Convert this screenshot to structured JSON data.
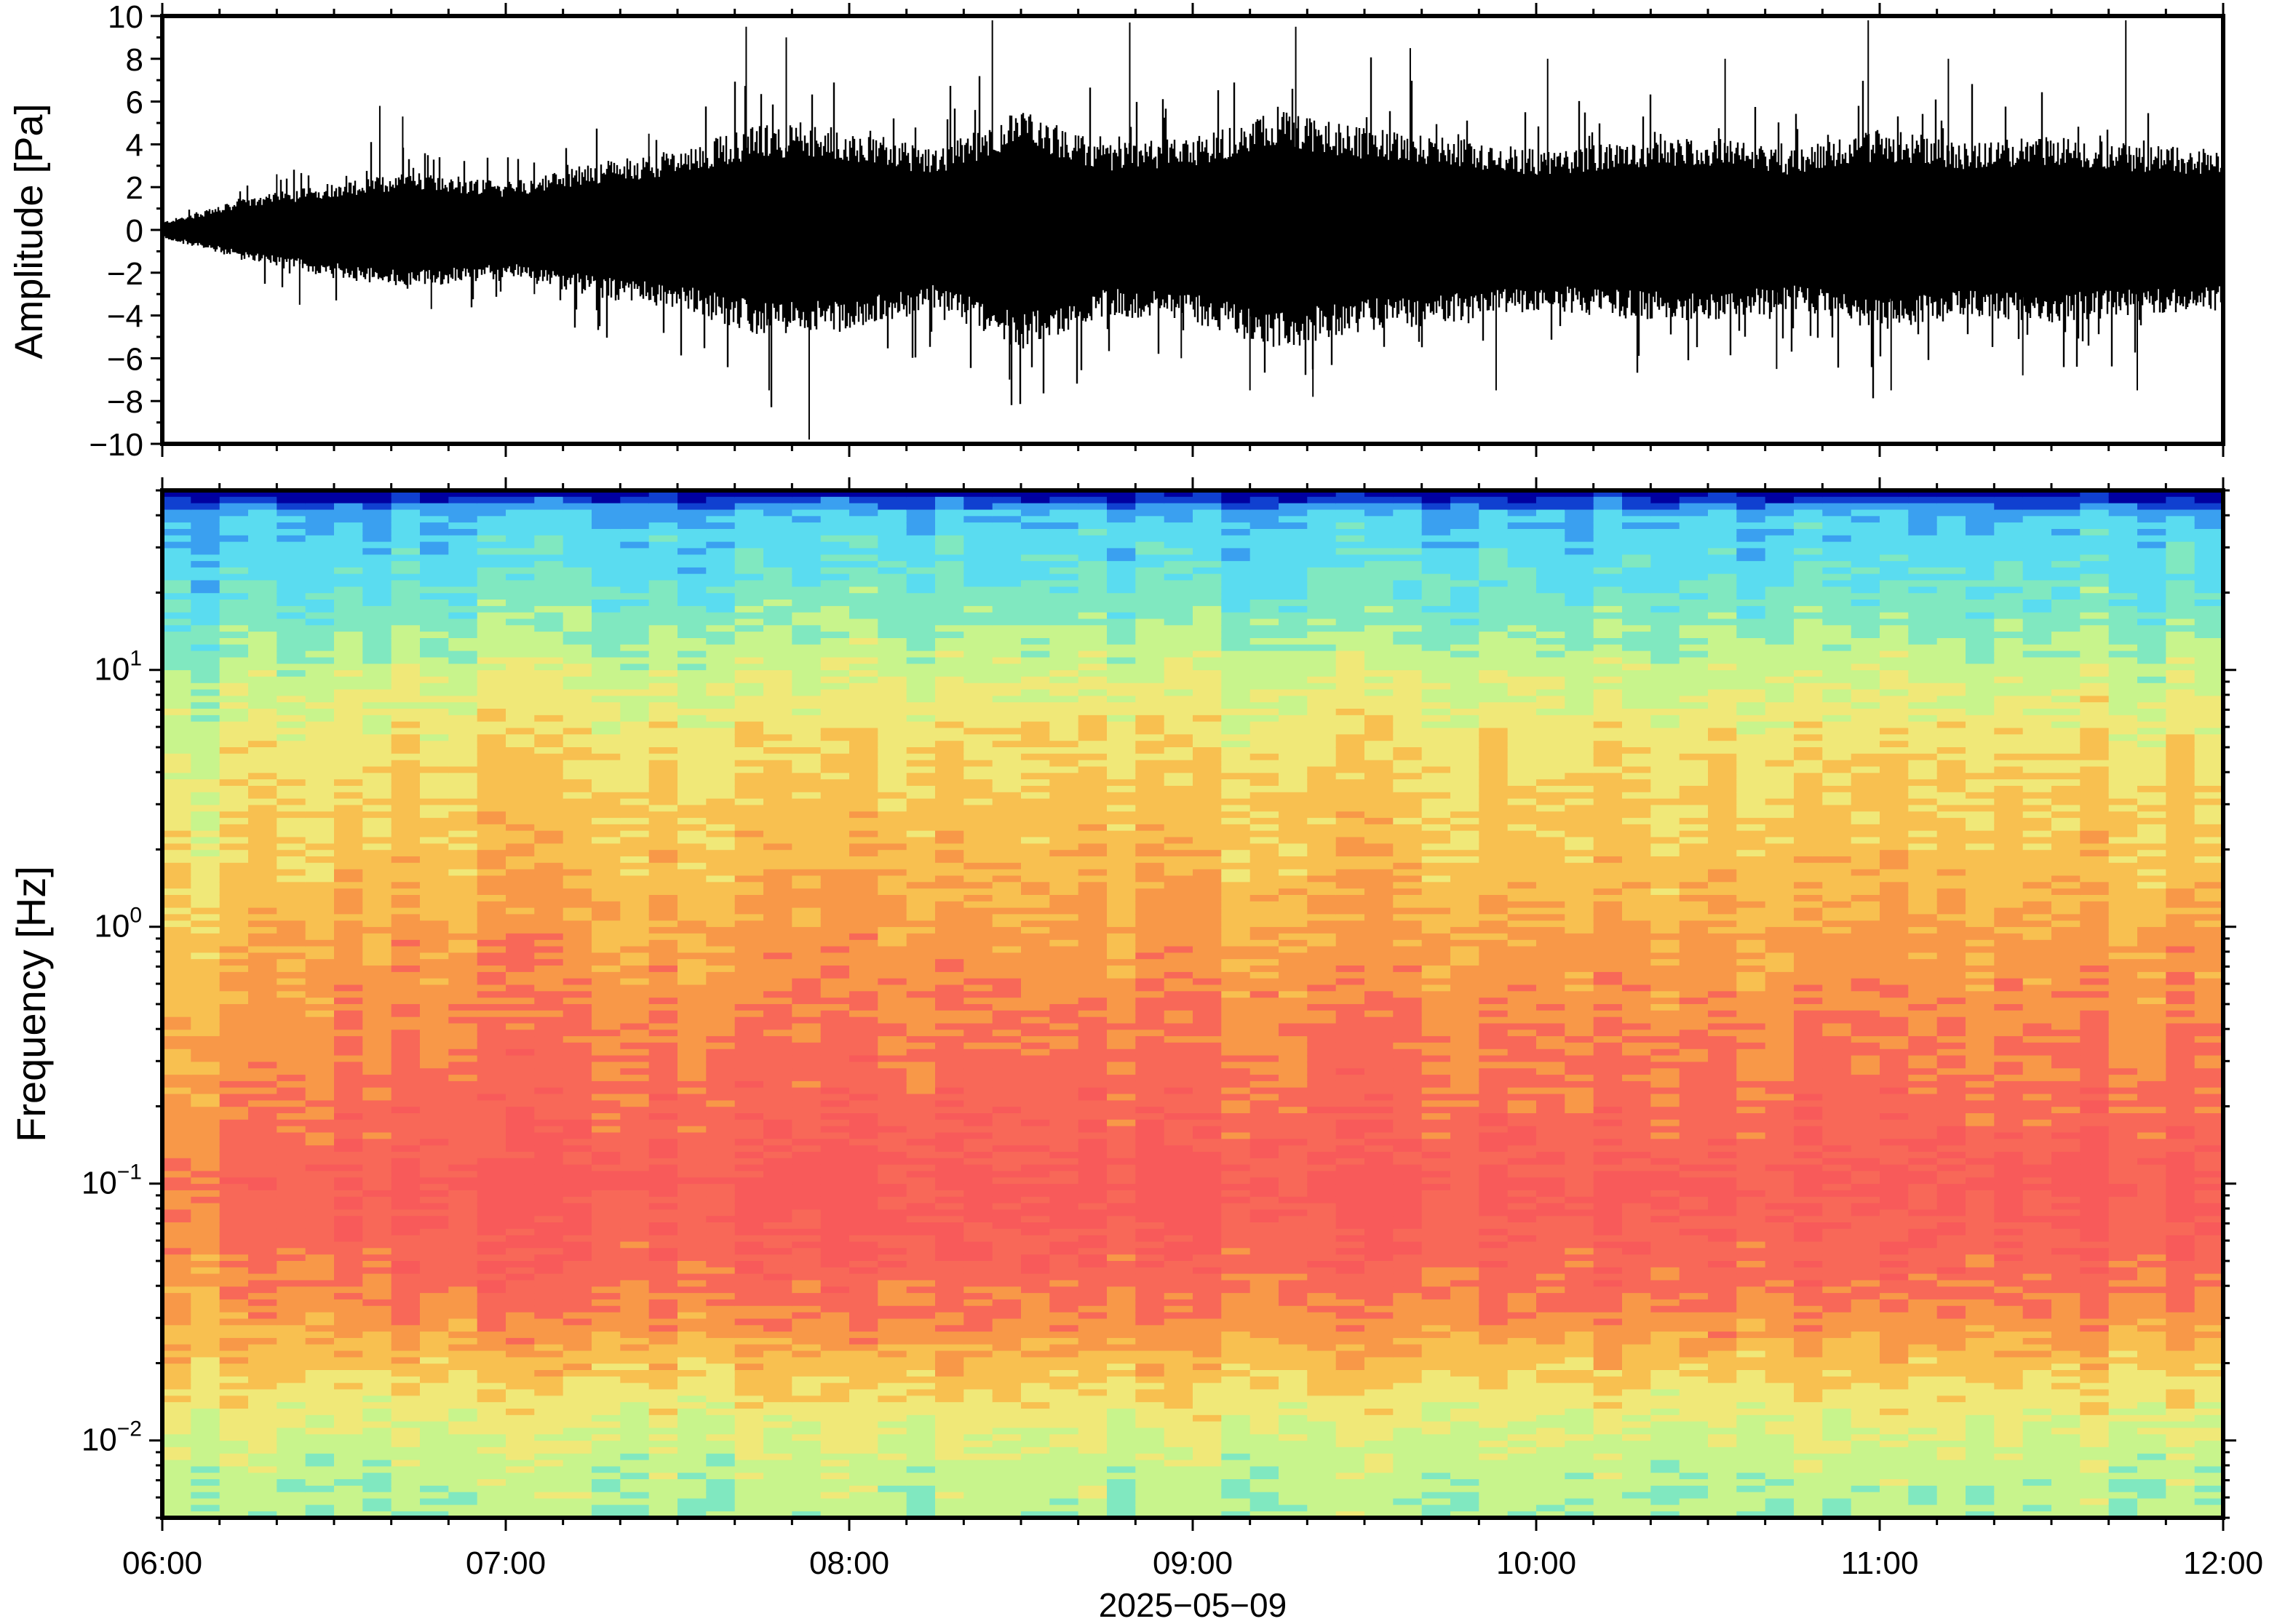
{
  "figure": {
    "date_label": "2025−05−09"
  },
  "chart_data": [
    {
      "type": "line",
      "ylabel": "Amplitude [Pa]",
      "xlabel": "",
      "ylim": [
        -10,
        10
      ],
      "yticks": [
        10,
        8,
        6,
        4,
        2,
        0,
        -2,
        -4,
        -6,
        -8,
        -10
      ],
      "ytick_labels": [
        "10",
        "8",
        "6",
        "4",
        "2",
        "0",
        "−2",
        "−4",
        "−6",
        "−8",
        "−10"
      ],
      "xlim": [
        "06:00",
        "12:00"
      ],
      "grid": false,
      "series": [
        {
          "color": "#000000",
          "envelope": {
            "time_h": [
              6.0,
              6.25,
              6.5,
              6.75,
              7.0,
              7.25,
              7.5,
              7.75,
              8.0,
              8.25,
              8.5,
              8.75,
              9.0,
              9.25,
              9.5,
              9.75,
              10.0,
              10.25,
              10.5,
              10.75,
              11.0,
              11.25,
              11.5,
              11.75,
              12.0
            ],
            "amp_pa": [
              0.3,
              1.2,
              1.8,
              2.2,
              1.8,
              2.5,
              3.0,
              4.0,
              3.8,
              3.0,
              4.5,
              3.2,
              3.5,
              4.5,
              3.8,
              3.5,
              3.0,
              3.3,
              3.5,
              3.0,
              3.8,
              3.3,
              3.5,
              3.2,
              3.0
            ]
          },
          "peaks": [
            {
              "t": "06:20",
              "amp": 2.6
            },
            {
              "t": "06:24",
              "amp": -3.5
            },
            {
              "t": "06:38",
              "amp": 5.8
            },
            {
              "t": "06:42",
              "amp": 5.3
            },
            {
              "t": "06:47",
              "amp": -3.7
            },
            {
              "t": "07:05",
              "amp": -3.0
            },
            {
              "t": "07:25",
              "amp": 4.5
            },
            {
              "t": "07:42",
              "amp": 9.5
            },
            {
              "t": "07:46",
              "amp": -7.5
            },
            {
              "t": "07:49",
              "amp": 9.0
            },
            {
              "t": "07:53",
              "amp": -9.8
            },
            {
              "t": "08:25",
              "amp": 9.8
            },
            {
              "t": "08:28",
              "amp": -7.0
            },
            {
              "t": "08:49",
              "amp": 9.7
            },
            {
              "t": "08:58",
              "amp": -6.0
            },
            {
              "t": "09:10",
              "amp": -7.5
            },
            {
              "t": "09:18",
              "amp": 9.5
            },
            {
              "t": "09:21",
              "amp": -7.8
            },
            {
              "t": "09:38",
              "amp": 8.5
            },
            {
              "t": "09:53",
              "amp": -7.5
            },
            {
              "t": "10:02",
              "amp": 8.0
            },
            {
              "t": "10:33",
              "amp": 8.0
            },
            {
              "t": "10:42",
              "amp": -6.5
            },
            {
              "t": "10:58",
              "amp": 9.8
            },
            {
              "t": "11:02",
              "amp": -7.5
            },
            {
              "t": "11:12",
              "amp": 8.0
            },
            {
              "t": "11:25",
              "amp": -6.8
            },
            {
              "t": "11:43",
              "amp": 9.8
            },
            {
              "t": "11:45",
              "amp": -7.5
            }
          ]
        }
      ]
    },
    {
      "type": "heatmap",
      "ylabel": "Frequency [Hz]",
      "xlabel": "2025−05−09",
      "yscale": "log",
      "ylim": [
        0.005,
        50
      ],
      "yticks": [
        {
          "value": 10,
          "base": "10",
          "exp": "1"
        },
        {
          "value": 1,
          "base": "10",
          "exp": "0"
        },
        {
          "value": 0.1,
          "base": "10",
          "exp": "−1"
        },
        {
          "value": 0.01,
          "base": "10",
          "exp": "−2"
        }
      ],
      "xlim": [
        "06:00",
        "12:00"
      ],
      "xticks": [
        "06:00",
        "07:00",
        "08:00",
        "09:00",
        "10:00",
        "11:00",
        "12:00"
      ],
      "colormap": [
        "#0000a0",
        "#1040d0",
        "#3aa0f0",
        "#5adcf0",
        "#80e8c0",
        "#c8f48c",
        "#f0e878",
        "#f8c050",
        "#f89848",
        "#f86858",
        "#f85a5a",
        "#ffa8a8"
      ],
      "level_profile": {
        "freq_hz": [
          0.005,
          0.008,
          0.012,
          0.02,
          0.03,
          0.05,
          0.1,
          0.2,
          0.5,
          1.0,
          2.0,
          5.0,
          10.0,
          20.0,
          40.0,
          45.0,
          50.0
        ],
        "relative_level": [
          0.47,
          0.5,
          0.56,
          0.68,
          0.8,
          0.88,
          0.93,
          0.86,
          0.8,
          0.74,
          0.68,
          0.62,
          0.52,
          0.38,
          0.28,
          0.15,
          0.0
        ]
      },
      "onset_hour": 6.5,
      "grid": false
    }
  ]
}
